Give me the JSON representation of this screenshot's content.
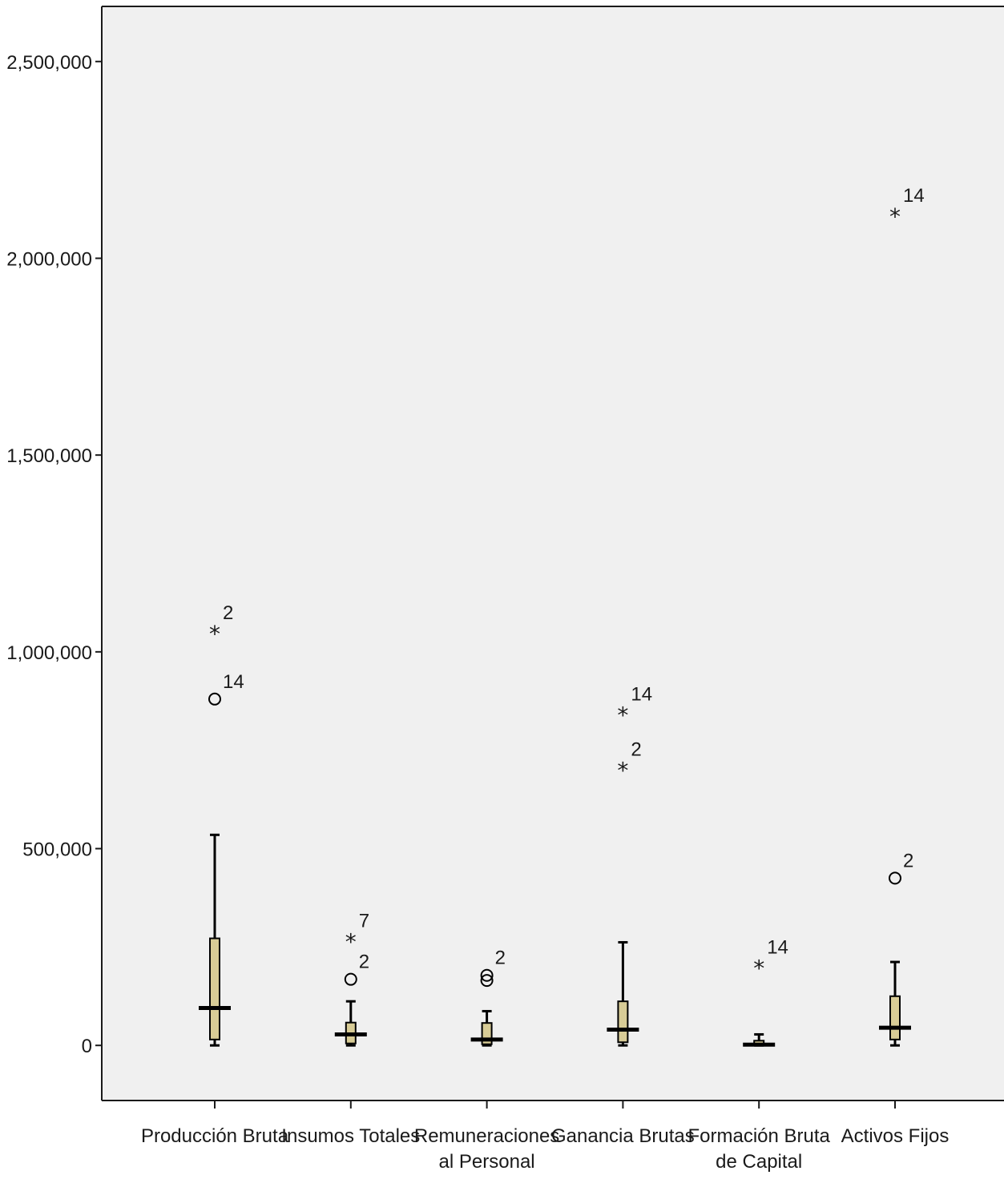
{
  "chart_data": {
    "type": "boxplot",
    "ylim": [
      -140000,
      2640000
    ],
    "y_ticks": [
      0,
      500000,
      1000000,
      1500000,
      2000000,
      2500000
    ],
    "y_tick_labels": [
      "0",
      "500,000",
      "1,000,000",
      "1,500,000",
      "2,000,000",
      "2,500,000"
    ],
    "grid": false,
    "colors": {
      "box_fill": "#d8cc96",
      "plot_bg": "#f0f0f0",
      "line": "#000000"
    },
    "categories": [
      {
        "lines": [
          "Producción Bruta"
        ],
        "whisker_low": 0,
        "q1": 15000,
        "median": 95000,
        "q3": 272000,
        "whisker_high": 535000,
        "outliers": [
          {
            "value": 1055000,
            "marker": "extreme",
            "label": "2"
          },
          {
            "value": 880000,
            "marker": "outlier",
            "label": "14"
          }
        ]
      },
      {
        "lines": [
          "Insumos Totales"
        ],
        "whisker_low": 0,
        "q1": 5000,
        "median": 28000,
        "q3": 58000,
        "whisker_high": 112000,
        "outliers": [
          {
            "value": 272000,
            "marker": "extreme",
            "label": "7"
          },
          {
            "value": 168000,
            "marker": "outlier",
            "label": "2"
          }
        ]
      },
      {
        "lines": [
          "Remuneraciones",
          "al Personal"
        ],
        "whisker_low": 0,
        "q1": 3000,
        "median": 15000,
        "q3": 57000,
        "whisker_high": 87000,
        "outliers": [
          {
            "value": 178000,
            "marker": "outlier",
            "label": "2"
          },
          {
            "value": 165000,
            "marker": "outlier",
            "label": ""
          }
        ]
      },
      {
        "lines": [
          "Ganancia Brutas"
        ],
        "whisker_low": 0,
        "q1": 8000,
        "median": 40000,
        "q3": 112000,
        "whisker_high": 262000,
        "outliers": [
          {
            "value": 848000,
            "marker": "extreme",
            "label": "14"
          },
          {
            "value": 708000,
            "marker": "extreme",
            "label": "2"
          }
        ]
      },
      {
        "lines": [
          "Formación Bruta",
          "de Capital"
        ],
        "whisker_low": 0,
        "q1": 0,
        "median": 2000,
        "q3": 12000,
        "whisker_high": 28000,
        "outliers": [
          {
            "value": 205000,
            "marker": "extreme",
            "label": "14"
          }
        ]
      },
      {
        "lines": [
          "Activos Fijos"
        ],
        "whisker_low": 0,
        "q1": 15000,
        "median": 45000,
        "q3": 125000,
        "whisker_high": 212000,
        "outliers": [
          {
            "value": 2115000,
            "marker": "extreme",
            "label": "14"
          },
          {
            "value": 425000,
            "marker": "outlier",
            "label": "2"
          }
        ]
      }
    ]
  }
}
